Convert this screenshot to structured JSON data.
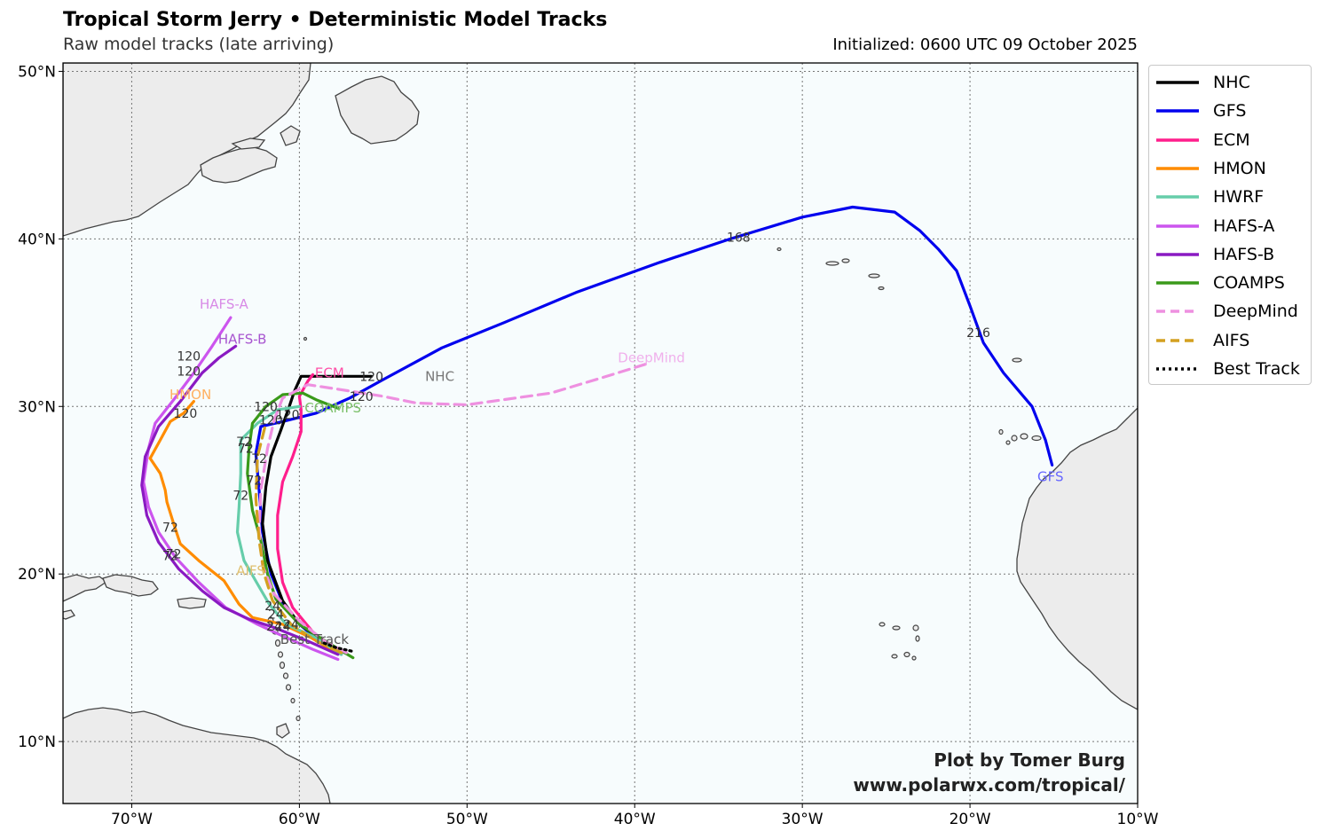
{
  "title": "Tropical Storm Jerry • Deterministic Model Tracks",
  "subtitle": "Raw model tracks (late arriving)",
  "initialized": "Initialized: 0600 UTC 09 October 2025",
  "credit": {
    "line1": "Plot by Tomer Burg",
    "line2": "www.polarwx.com/tropical/"
  },
  "axes": {
    "lon_range": [
      -74.1,
      -10
    ],
    "lat_range": [
      6.3,
      50.5
    ],
    "lon_ticks": [
      -70,
      -60,
      -50,
      -40,
      -30,
      -20,
      -10
    ],
    "lat_ticks": [
      10,
      20,
      30,
      40,
      50
    ],
    "lon_tick_labels": [
      "70°W",
      "60°W",
      "50°W",
      "40°W",
      "30°W",
      "20°W",
      "10°W"
    ],
    "lat_tick_labels": [
      "10°N",
      "20°N",
      "30°N",
      "40°N",
      "50°N"
    ],
    "grid": "dotted"
  },
  "colors": {
    "ocean": "#f7fcfd",
    "land": "#ececec",
    "coast": "#444444",
    "grid": "#777777"
  },
  "legend": [
    {
      "name": "NHC",
      "color": "#000000",
      "style": "solid"
    },
    {
      "name": "GFS",
      "color": "#0000ee",
      "style": "solid"
    },
    {
      "name": "ECM",
      "color": "#ff1e8c",
      "style": "solid"
    },
    {
      "name": "HMON",
      "color": "#ff8c00",
      "style": "solid"
    },
    {
      "name": "HWRF",
      "color": "#66cdaa",
      "style": "solid"
    },
    {
      "name": "HAFS-A",
      "color": "#cc55ee",
      "style": "solid"
    },
    {
      "name": "HAFS-B",
      "color": "#8a1ac2",
      "style": "solid"
    },
    {
      "name": "COAMPS",
      "color": "#3a9a1a",
      "style": "solid"
    },
    {
      "name": "DeepMind",
      "color": "#ee90e0",
      "style": "dashed"
    },
    {
      "name": "AIFS",
      "color": "#d4a020",
      "style": "dashed"
    },
    {
      "name": "Best Track",
      "color": "#000000",
      "style": "dotted"
    }
  ],
  "tracks": [
    {
      "name": "GFS",
      "color": "#0000ee",
      "style": "solid",
      "label": "GFS",
      "label_color": "#6666ff",
      "points": [
        [
          -57.5,
          15.2
        ],
        [
          -58.8,
          16.0
        ],
        [
          -60.0,
          17.0
        ],
        [
          -61.0,
          18.3
        ],
        [
          -61.7,
          20.0
        ],
        [
          -62.2,
          22.5
        ],
        [
          -62.4,
          25.0
        ],
        [
          -62.6,
          27.2
        ],
        [
          -62.3,
          28.8
        ],
        [
          -61.0,
          29.1
        ],
        [
          -59.0,
          29.6
        ],
        [
          -57.0,
          30.5
        ],
        [
          -55.0,
          31.6
        ],
        [
          -51.5,
          33.5
        ],
        [
          -47.8,
          35.0
        ],
        [
          -43.5,
          36.8
        ],
        [
          -38.5,
          38.6
        ],
        [
          -34.3,
          40.0
        ],
        [
          -30.0,
          41.3
        ],
        [
          -27.0,
          41.9
        ],
        [
          -24.5,
          41.6
        ],
        [
          -23.0,
          40.5
        ],
        [
          -21.9,
          39.4
        ],
        [
          -20.8,
          38.1
        ],
        [
          -20.0,
          36.0
        ],
        [
          -19.2,
          33.8
        ],
        [
          -18.0,
          32.0
        ],
        [
          -16.3,
          30.0
        ],
        [
          -15.5,
          28.0
        ],
        [
          -15.1,
          26.5
        ]
      ],
      "annotations": [
        {
          "lon": -33.8,
          "lat": 40.1,
          "text": "168"
        },
        {
          "lon": -19.5,
          "lat": 34.4,
          "text": "216"
        }
      ]
    },
    {
      "name": "NHC",
      "color": "#000000",
      "style": "solid",
      "label": "NHC",
      "label_color": "#777777",
      "points": [
        [
          -57.3,
          15.3
        ],
        [
          -58.2,
          15.8
        ],
        [
          -59.0,
          16.3
        ],
        [
          -60.0,
          17.0
        ],
        [
          -61.0,
          18.4
        ],
        [
          -61.9,
          20.8
        ],
        [
          -62.2,
          23.0
        ],
        [
          -62.0,
          25.2
        ],
        [
          -61.7,
          27.0
        ],
        [
          -61.1,
          28.6
        ],
        [
          -60.6,
          30.0
        ],
        [
          -60.3,
          30.9
        ],
        [
          -59.9,
          31.8
        ],
        [
          -55.7,
          31.8
        ]
      ],
      "annotations": [
        {
          "lon": -55.7,
          "lat": 31.8,
          "text": "120"
        }
      ]
    },
    {
      "name": "ECM",
      "color": "#ff1e8c",
      "style": "solid",
      "label": "ECM",
      "label_color": "#ff4fa8",
      "points": [
        [
          -57.8,
          15.4
        ],
        [
          -59.0,
          16.3
        ],
        [
          -60.4,
          18.0
        ],
        [
          -61.0,
          19.5
        ],
        [
          -61.3,
          21.5
        ],
        [
          -61.3,
          23.5
        ],
        [
          -61.0,
          25.5
        ],
        [
          -60.4,
          27.0
        ],
        [
          -59.9,
          28.5
        ],
        [
          -59.9,
          29.8
        ],
        [
          -60.0,
          30.6
        ],
        [
          -59.5,
          31.5
        ],
        [
          -59.2,
          31.9
        ]
      ],
      "annotations": [
        {
          "lon": -60.7,
          "lat": 29.5,
          "text": "120"
        }
      ]
    },
    {
      "name": "HMON",
      "color": "#ff8c00",
      "style": "solid",
      "label": "HMON",
      "label_color": "#ffb060",
      "points": [
        [
          -57.8,
          15.3
        ],
        [
          -59.3,
          16.2
        ],
        [
          -61.0,
          17.0
        ],
        [
          -62.8,
          17.4
        ],
        [
          -63.6,
          18.2
        ],
        [
          -64.5,
          19.6
        ],
        [
          -66.0,
          20.8
        ],
        [
          -67.1,
          21.8
        ],
        [
          -67.5,
          23.0
        ],
        [
          -67.9,
          24.3
        ],
        [
          -68.0,
          25.0
        ],
        [
          -68.3,
          26.0
        ],
        [
          -68.9,
          26.9
        ],
        [
          -68.3,
          28.0
        ],
        [
          -67.7,
          29.1
        ],
        [
          -66.9,
          29.6
        ],
        [
          -66.3,
          30.3
        ]
      ],
      "annotations": [
        {
          "lon": -66.8,
          "lat": 29.6,
          "text": "120"
        },
        {
          "lon": -67.7,
          "lat": 22.8,
          "text": "72"
        }
      ]
    },
    {
      "name": "HWRF",
      "color": "#66cdaa",
      "style": "solid",
      "label": "HWRF",
      "label_color": "#66cdaa",
      "points": [
        [
          -57.5,
          15.2
        ],
        [
          -59.0,
          16.2
        ],
        [
          -60.8,
          17.0
        ],
        [
          -61.8,
          18.2
        ],
        [
          -62.5,
          19.4
        ],
        [
          -63.3,
          20.8
        ],
        [
          -63.7,
          22.5
        ],
        [
          -63.6,
          24.0
        ],
        [
          -63.5,
          26.0
        ],
        [
          -63.5,
          28.0
        ],
        [
          -62.5,
          29.0
        ],
        [
          -61.3,
          29.8
        ],
        [
          -60.0,
          30.0
        ]
      ],
      "annotations": [
        {
          "lon": -63.5,
          "lat": 24.7,
          "text": "72"
        }
      ]
    },
    {
      "name": "HAFS-A",
      "color": "#cc55ee",
      "style": "solid",
      "label": "HAFS-A",
      "label_color": "#d88ae6",
      "points": [
        [
          -57.7,
          14.9
        ],
        [
          -59.2,
          15.5
        ],
        [
          -61.0,
          16.3
        ],
        [
          -62.5,
          17.0
        ],
        [
          -64.4,
          18.0
        ],
        [
          -66.0,
          19.5
        ],
        [
          -67.4,
          21.0
        ],
        [
          -68.4,
          22.5
        ],
        [
          -69.0,
          24.0
        ],
        [
          -69.3,
          25.5
        ],
        [
          -69.0,
          27.5
        ],
        [
          -68.6,
          29.0
        ],
        [
          -67.5,
          30.4
        ],
        [
          -66.3,
          32.0
        ],
        [
          -65.2,
          33.6
        ],
        [
          -64.1,
          35.3
        ]
      ],
      "annotations": [
        {
          "lon": -66.6,
          "lat": 33.0,
          "text": "120"
        },
        {
          "lon": -67.7,
          "lat": 21.1,
          "text": "72"
        }
      ]
    },
    {
      "name": "HAFS-B",
      "color": "#8a1ac2",
      "style": "solid",
      "label": "HAFS-B",
      "label_color": "#a855d0",
      "points": [
        [
          -57.7,
          15.2
        ],
        [
          -59.5,
          16.0
        ],
        [
          -61.5,
          16.8
        ],
        [
          -63.0,
          17.3
        ],
        [
          -64.5,
          18.0
        ],
        [
          -65.8,
          19.0
        ],
        [
          -67.2,
          20.3
        ],
        [
          -68.4,
          21.9
        ],
        [
          -69.1,
          23.5
        ],
        [
          -69.4,
          25.3
        ],
        [
          -69.2,
          27.0
        ],
        [
          -68.4,
          28.8
        ],
        [
          -67.1,
          30.3
        ],
        [
          -65.8,
          32.0
        ],
        [
          -64.8,
          32.9
        ],
        [
          -63.8,
          33.6
        ]
      ],
      "annotations": [
        {
          "lon": -66.6,
          "lat": 32.1,
          "text": "120"
        },
        {
          "lon": -67.5,
          "lat": 21.2,
          "text": "72"
        }
      ]
    },
    {
      "name": "COAMPS",
      "color": "#3a9a1a",
      "style": "solid",
      "label": "COAMPS",
      "label_color": "#7cc06a",
      "points": [
        [
          -56.8,
          15.0
        ],
        [
          -58.3,
          15.9
        ],
        [
          -60.0,
          17.0
        ],
        [
          -61.4,
          18.5
        ],
        [
          -61.9,
          20.0
        ],
        [
          -62.3,
          22.0
        ],
        [
          -62.8,
          23.8
        ],
        [
          -63.1,
          26.0
        ],
        [
          -63.0,
          27.5
        ],
        [
          -62.8,
          29.0
        ],
        [
          -62.0,
          30.0
        ],
        [
          -61.0,
          30.7
        ],
        [
          -59.8,
          30.8
        ],
        [
          -59.0,
          30.4
        ],
        [
          -57.7,
          29.9
        ]
      ],
      "annotations": [
        {
          "lon": -62.0,
          "lat": 30.0,
          "text": "120"
        },
        {
          "lon": -63.2,
          "lat": 27.5,
          "text": "72"
        }
      ]
    },
    {
      "name": "DeepMind",
      "color": "#ee90e0",
      "style": "dashed",
      "label": "DeepMind",
      "label_color": "#f0b0ec",
      "points": [
        [
          -57.2,
          15.3
        ],
        [
          -58.5,
          16.0
        ],
        [
          -60.0,
          17.2
        ],
        [
          -61.5,
          18.8
        ],
        [
          -62.2,
          20.5
        ],
        [
          -62.4,
          22.5
        ],
        [
          -62.3,
          25.0
        ],
        [
          -61.9,
          27.5
        ],
        [
          -61.5,
          29.2
        ],
        [
          -61.0,
          30.5
        ],
        [
          -59.5,
          31.3
        ],
        [
          -57.5,
          31.0
        ],
        [
          -55.0,
          30.6
        ],
        [
          -53.0,
          30.2
        ],
        [
          -50.0,
          30.1
        ],
        [
          -45.0,
          30.8
        ],
        [
          -42.0,
          31.7
        ],
        [
          -39.1,
          32.6
        ]
      ],
      "annotations": [
        {
          "lon": -56.3,
          "lat": 30.6,
          "text": "120"
        }
      ]
    },
    {
      "name": "AIFS",
      "color": "#d4a020",
      "style": "dashed",
      "label": "AIFS",
      "label_color": "#e0c070",
      "points": [
        [
          -57.5,
          15.3
        ],
        [
          -59.0,
          16.0
        ],
        [
          -60.5,
          17.0
        ],
        [
          -61.6,
          18.4
        ],
        [
          -62.1,
          20.0
        ],
        [
          -62.4,
          22.0
        ],
        [
          -62.6,
          24.5
        ],
        [
          -62.5,
          27.0
        ],
        [
          -62.0,
          29.0
        ]
      ],
      "annotations": [
        {
          "lon": -61.7,
          "lat": 29.2,
          "text": "120"
        }
      ]
    },
    {
      "name": "Best Track",
      "color": "#000000",
      "style": "dotted",
      "label": "Best Track",
      "label_color": "#555555",
      "points": [
        [
          -56.9,
          15.4
        ],
        [
          -57.8,
          15.6
        ],
        [
          -58.6,
          15.9
        ]
      ],
      "annotations": []
    }
  ],
  "hour24_marks": [
    [
      -61.6,
      18.1
    ],
    [
      -61.4,
      17.6
    ],
    [
      -60.5,
      17.0
    ],
    [
      -61.5,
      16.9
    ],
    [
      -61.0,
      16.9
    ]
  ],
  "hour72_extra": [
    [
      -62.4,
      26.9
    ],
    [
      -62.7,
      25.6
    ],
    [
      -63.3,
      27.9
    ]
  ]
}
